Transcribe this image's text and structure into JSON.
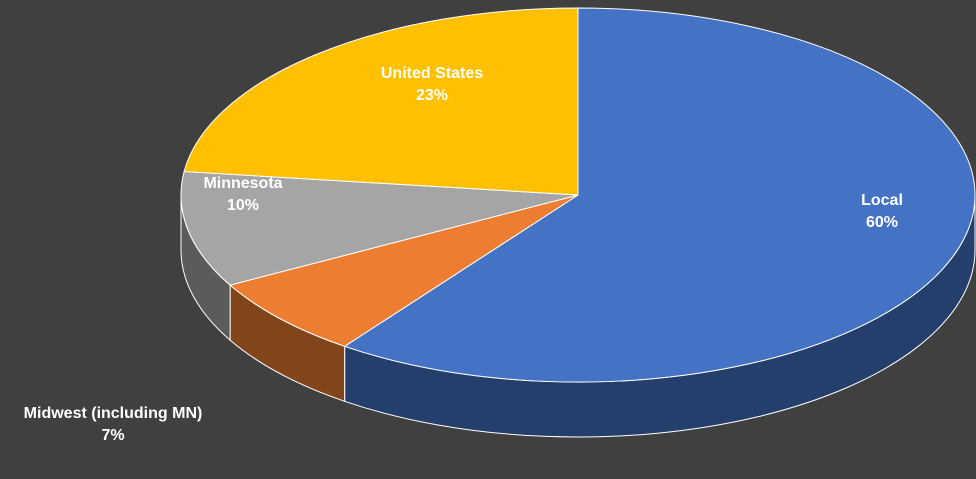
{
  "chart_data": {
    "type": "pie3d",
    "categories": [
      "Local",
      "Midwest (including MN)",
      "Minnesota",
      "United States"
    ],
    "values": [
      60,
      7,
      10,
      23
    ],
    "value_labels": [
      "60%",
      "7%",
      "10%",
      "23%"
    ],
    "colors": [
      "#4472c4",
      "#ed7d31",
      "#a5a5a5",
      "#ffc000"
    ]
  }
}
